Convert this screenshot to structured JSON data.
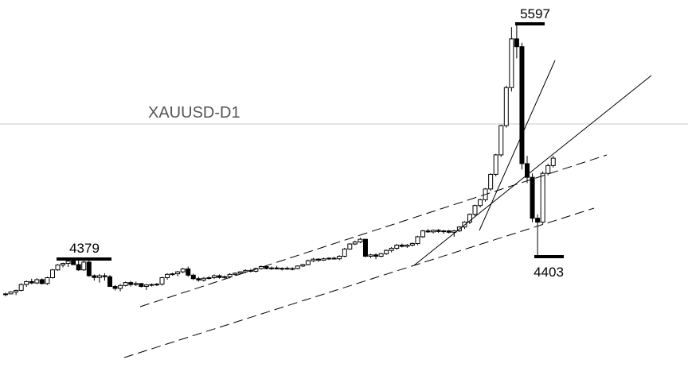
{
  "chart_data": {
    "type": "candlestick",
    "title": "XAUUSD-D1",
    "annotations": {
      "low_left": "4379",
      "high": "5597",
      "low_right": "4403"
    },
    "candles": [
      [
        4208,
        4200,
        4218,
        4212
      ],
      [
        4212,
        4210,
        4226,
        4222
      ],
      [
        4222,
        4206,
        4234,
        4230
      ],
      [
        4230,
        4225,
        4266,
        4260
      ],
      [
        4260,
        4248,
        4280,
        4275
      ],
      [
        4275,
        4262,
        4290,
        4268
      ],
      [
        4268,
        4262,
        4292,
        4285
      ],
      [
        4285,
        4260,
        4292,
        4265
      ],
      [
        4265,
        4258,
        4300,
        4295
      ],
      [
        4295,
        4290,
        4340,
        4335
      ],
      [
        4335,
        4330,
        4365,
        4360
      ],
      [
        4360,
        4348,
        4372,
        4368
      ],
      [
        4368,
        4350,
        4385,
        4380
      ],
      [
        4380,
        4360,
        4386,
        4362
      ],
      [
        4362,
        4330,
        4386,
        4335
      ],
      [
        4335,
        4330,
        4385,
        4375
      ],
      [
        4375,
        4300,
        4385,
        4305
      ],
      [
        4305,
        4280,
        4312,
        4296
      ],
      [
        4296,
        4270,
        4314,
        4305
      ],
      [
        4305,
        4280,
        4318,
        4300
      ],
      [
        4300,
        4248,
        4308,
        4250
      ],
      [
        4250,
        4230,
        4258,
        4240
      ],
      [
        4240,
        4225,
        4262,
        4255
      ],
      [
        4255,
        4250,
        4275,
        4270
      ],
      [
        4270,
        4250,
        4278,
        4260
      ],
      [
        4260,
        4252,
        4275,
        4265
      ],
      [
        4265,
        4245,
        4268,
        4250
      ],
      [
        4250,
        4232,
        4262,
        4258
      ],
      [
        4258,
        4250,
        4265,
        4260
      ],
      [
        4260,
        4252,
        4268,
        4262
      ],
      [
        4262,
        4255,
        4300,
        4295
      ],
      [
        4295,
        4285,
        4318,
        4312
      ],
      [
        4312,
        4305,
        4320,
        4315
      ],
      [
        4315,
        4302,
        4330,
        4325
      ],
      [
        4325,
        4318,
        4345,
        4340
      ],
      [
        4340,
        4300,
        4352,
        4308
      ],
      [
        4308,
        4283,
        4315,
        4290
      ],
      [
        4290,
        4275,
        4300,
        4283
      ],
      [
        4283,
        4275,
        4298,
        4292
      ],
      [
        4292,
        4286,
        4302,
        4295
      ],
      [
        4295,
        4288,
        4312,
        4305
      ],
      [
        4305,
        4290,
        4312,
        4296
      ],
      [
        4296,
        4288,
        4306,
        4300
      ],
      [
        4300,
        4292,
        4318,
        4312
      ],
      [
        4312,
        4305,
        4322,
        4318
      ],
      [
        4318,
        4312,
        4328,
        4325
      ],
      [
        4325,
        4318,
        4338,
        4332
      ],
      [
        4332,
        4322,
        4340,
        4328
      ],
      [
        4328,
        4322,
        4346,
        4342
      ],
      [
        4342,
        4336,
        4358,
        4352
      ],
      [
        4352,
        4338,
        4358,
        4342
      ],
      [
        4342,
        4335,
        4352,
        4345
      ],
      [
        4345,
        4338,
        4355,
        4340
      ],
      [
        4340,
        4332,
        4348,
        4343
      ],
      [
        4343,
        4336,
        4352,
        4340
      ],
      [
        4340,
        4333,
        4348,
        4342
      ],
      [
        4342,
        4338,
        4358,
        4355
      ],
      [
        4355,
        4350,
        4366,
        4362
      ],
      [
        4362,
        4358,
        4388,
        4382
      ],
      [
        4382,
        4375,
        4396,
        4390
      ],
      [
        4390,
        4376,
        4395,
        4385
      ],
      [
        4385,
        4382,
        4398,
        4392
      ],
      [
        4392,
        4386,
        4400,
        4395
      ],
      [
        4395,
        4388,
        4402,
        4392
      ],
      [
        4392,
        4385,
        4410,
        4405
      ],
      [
        4405,
        4400,
        4448,
        4442
      ],
      [
        4442,
        4438,
        4472,
        4468
      ],
      [
        4468,
        4462,
        4485,
        4478
      ],
      [
        4478,
        4472,
        4500,
        4492
      ],
      [
        4492,
        4400,
        4495,
        4405
      ],
      [
        4405,
        4396,
        4418,
        4412
      ],
      [
        4412,
        4390,
        4420,
        4405
      ],
      [
        4405,
        4400,
        4422,
        4418
      ],
      [
        4418,
        4412,
        4440,
        4435
      ],
      [
        4435,
        4425,
        4452,
        4446
      ],
      [
        4446,
        4438,
        4468,
        4462
      ],
      [
        4462,
        4450,
        4470,
        4456
      ],
      [
        4456,
        4448,
        4468,
        4462
      ],
      [
        4462,
        4455,
        4476,
        4470
      ],
      [
        4470,
        4462,
        4510,
        4505
      ],
      [
        4505,
        4500,
        4540,
        4535
      ],
      [
        4535,
        4525,
        4545,
        4530
      ],
      [
        4530,
        4522,
        4542,
        4538
      ],
      [
        4538,
        4525,
        4545,
        4532
      ],
      [
        4532,
        4520,
        4540,
        4535
      ],
      [
        4535,
        4522,
        4540,
        4528
      ],
      [
        4528,
        4505,
        4540,
        4535
      ],
      [
        4535,
        4530,
        4560,
        4555
      ],
      [
        4555,
        4545,
        4585,
        4580
      ],
      [
        4580,
        4570,
        4625,
        4620
      ],
      [
        4620,
        4610,
        4670,
        4665
      ],
      [
        4665,
        4655,
        4700,
        4695
      ],
      [
        4695,
        4685,
        4755,
        4750
      ],
      [
        4750,
        4740,
        4830,
        4825
      ],
      [
        4825,
        4815,
        4930,
        4925
      ],
      [
        4925,
        4915,
        5080,
        5075
      ],
      [
        5075,
        5065,
        5280,
        5270
      ],
      [
        5270,
        5250,
        5580,
        5520
      ],
      [
        5520,
        5420,
        5597,
        5480
      ],
      [
        5480,
        4850,
        5500,
        4880
      ],
      [
        4880,
        4780,
        4920,
        4810
      ],
      [
        4810,
        4580,
        4830,
        4600
      ],
      [
        4600,
        4403,
        4620,
        4580
      ],
      [
        4580,
        4570,
        4840,
        4830
      ],
      [
        4830,
        4820,
        4880,
        4870
      ],
      [
        4870,
        4860,
        4920,
        4908
      ]
    ]
  }
}
